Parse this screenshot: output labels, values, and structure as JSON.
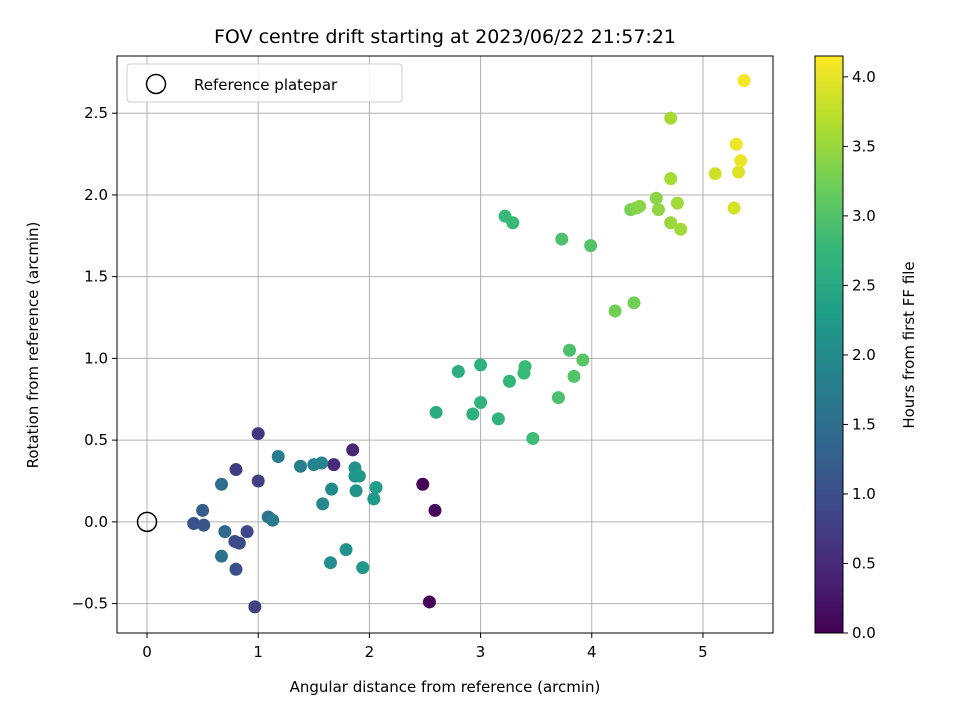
{
  "chart_data": {
    "type": "scatter",
    "title": "FOV centre drift starting at 2023/06/22 21:57:21",
    "xlabel": "Angular distance from reference (arcmin)",
    "ylabel": "Rotation from reference (arcmin)",
    "xlim": [
      -0.27,
      5.63
    ],
    "ylim": [
      -0.68,
      2.85
    ],
    "x_ticks": [
      0,
      1,
      2,
      3,
      4,
      5
    ],
    "x_tick_labels": [
      "0",
      "1",
      "2",
      "3",
      "4",
      "5"
    ],
    "y_ticks": [
      -0.5,
      0.0,
      0.5,
      1.0,
      1.5,
      2.0,
      2.5
    ],
    "y_tick_labels": [
      "−0.5",
      "0.0",
      "0.5",
      "1.0",
      "1.5",
      "2.0",
      "2.5"
    ],
    "grid": true,
    "legend": {
      "position": "upper-left",
      "entries": [
        {
          "label": "Reference platepar",
          "marker": "open-circle"
        }
      ]
    },
    "reference_point": {
      "x": 0,
      "y": 0
    },
    "colorbar": {
      "label": "Hours from first FF file",
      "colormap": "viridis",
      "range": [
        0.0,
        4.15
      ],
      "ticks": [
        0.0,
        0.5,
        1.0,
        1.5,
        2.0,
        2.5,
        3.0,
        3.5,
        4.0
      ],
      "tick_labels": [
        "0.0",
        "0.5",
        "1.0",
        "1.5",
        "2.0",
        "2.5",
        "3.0",
        "3.5",
        "4.0"
      ]
    },
    "points": [
      {
        "x": 2.48,
        "y": 0.23,
        "c": 0.05
      },
      {
        "x": 2.59,
        "y": 0.07,
        "c": 0.1
      },
      {
        "x": 2.54,
        "y": -0.49,
        "c": 0.05
      },
      {
        "x": 1.85,
        "y": 0.44,
        "c": 0.45
      },
      {
        "x": 1.68,
        "y": 0.35,
        "c": 0.5
      },
      {
        "x": 1.0,
        "y": 0.54,
        "c": 0.65
      },
      {
        "x": 0.8,
        "y": 0.32,
        "c": 0.75
      },
      {
        "x": 0.97,
        "y": -0.52,
        "c": 0.8
      },
      {
        "x": 1.0,
        "y": 0.25,
        "c": 0.8
      },
      {
        "x": 0.9,
        "y": -0.06,
        "c": 0.9
      },
      {
        "x": 0.83,
        "y": -0.13,
        "c": 0.95
      },
      {
        "x": 0.79,
        "y": -0.12,
        "c": 0.95
      },
      {
        "x": 0.8,
        "y": -0.29,
        "c": 1.0
      },
      {
        "x": 0.42,
        "y": -0.01,
        "c": 1.05
      },
      {
        "x": 0.51,
        "y": -0.02,
        "c": 1.1
      },
      {
        "x": 0.5,
        "y": 0.07,
        "c": 1.2
      },
      {
        "x": 0.7,
        "y": -0.06,
        "c": 1.4
      },
      {
        "x": 0.67,
        "y": 0.23,
        "c": 1.45
      },
      {
        "x": 0.67,
        "y": -0.21,
        "c": 1.55
      },
      {
        "x": 1.09,
        "y": 0.03,
        "c": 1.6
      },
      {
        "x": 1.13,
        "y": 0.01,
        "c": 1.7
      },
      {
        "x": 1.18,
        "y": 0.4,
        "c": 1.75
      },
      {
        "x": 1.38,
        "y": 0.34,
        "c": 1.8
      },
      {
        "x": 1.5,
        "y": 0.35,
        "c": 1.85
      },
      {
        "x": 1.57,
        "y": 0.36,
        "c": 1.9
      },
      {
        "x": 1.58,
        "y": 0.11,
        "c": 1.95
      },
      {
        "x": 1.66,
        "y": 0.2,
        "c": 2.0
      },
      {
        "x": 1.65,
        "y": -0.25,
        "c": 2.05
      },
      {
        "x": 1.79,
        "y": -0.17,
        "c": 2.1
      },
      {
        "x": 1.87,
        "y": 0.33,
        "c": 2.1
      },
      {
        "x": 1.88,
        "y": 0.19,
        "c": 2.15
      },
      {
        "x": 1.87,
        "y": 0.28,
        "c": 2.15
      },
      {
        "x": 1.91,
        "y": 0.28,
        "c": 2.2
      },
      {
        "x": 1.94,
        "y": -0.28,
        "c": 2.2
      },
      {
        "x": 2.04,
        "y": 0.14,
        "c": 2.25
      },
      {
        "x": 2.06,
        "y": 0.21,
        "c": 2.3
      },
      {
        "x": 2.6,
        "y": 0.67,
        "c": 2.55
      },
      {
        "x": 2.8,
        "y": 0.92,
        "c": 2.6
      },
      {
        "x": 2.93,
        "y": 0.66,
        "c": 2.65
      },
      {
        "x": 3.0,
        "y": 0.96,
        "c": 2.65
      },
      {
        "x": 3.0,
        "y": 0.73,
        "c": 2.7
      },
      {
        "x": 3.16,
        "y": 0.63,
        "c": 2.7
      },
      {
        "x": 3.26,
        "y": 0.86,
        "c": 2.75
      },
      {
        "x": 3.39,
        "y": 0.91,
        "c": 2.8
      },
      {
        "x": 3.4,
        "y": 0.95,
        "c": 2.8
      },
      {
        "x": 3.47,
        "y": 0.51,
        "c": 2.85
      },
      {
        "x": 3.7,
        "y": 0.76,
        "c": 2.95
      },
      {
        "x": 3.8,
        "y": 1.05,
        "c": 2.95
      },
      {
        "x": 3.84,
        "y": 0.89,
        "c": 3.0
      },
      {
        "x": 3.92,
        "y": 0.99,
        "c": 3.05
      },
      {
        "x": 3.22,
        "y": 1.87,
        "c": 2.8
      },
      {
        "x": 3.29,
        "y": 1.83,
        "c": 2.8
      },
      {
        "x": 3.73,
        "y": 1.73,
        "c": 2.95
      },
      {
        "x": 3.99,
        "y": 1.69,
        "c": 3.0
      },
      {
        "x": 4.21,
        "y": 1.29,
        "c": 3.25
      },
      {
        "x": 4.38,
        "y": 1.34,
        "c": 3.25
      },
      {
        "x": 4.35,
        "y": 1.91,
        "c": 3.3
      },
      {
        "x": 4.4,
        "y": 1.92,
        "c": 3.35
      },
      {
        "x": 4.43,
        "y": 1.93,
        "c": 3.4
      },
      {
        "x": 4.58,
        "y": 1.98,
        "c": 3.4
      },
      {
        "x": 4.6,
        "y": 1.91,
        "c": 3.45
      },
      {
        "x": 4.71,
        "y": 1.83,
        "c": 3.5
      },
      {
        "x": 4.77,
        "y": 1.95,
        "c": 3.55
      },
      {
        "x": 4.8,
        "y": 1.79,
        "c": 3.55
      },
      {
        "x": 4.71,
        "y": 2.1,
        "c": 3.6
      },
      {
        "x": 4.71,
        "y": 2.47,
        "c": 3.6
      },
      {
        "x": 5.11,
        "y": 2.13,
        "c": 3.85
      },
      {
        "x": 5.28,
        "y": 1.92,
        "c": 3.9
      },
      {
        "x": 5.3,
        "y": 2.31,
        "c": 4.05
      },
      {
        "x": 5.32,
        "y": 2.14,
        "c": 3.95
      },
      {
        "x": 5.34,
        "y": 2.21,
        "c": 4.05
      },
      {
        "x": 5.37,
        "y": 2.7,
        "c": 4.1
      }
    ]
  }
}
